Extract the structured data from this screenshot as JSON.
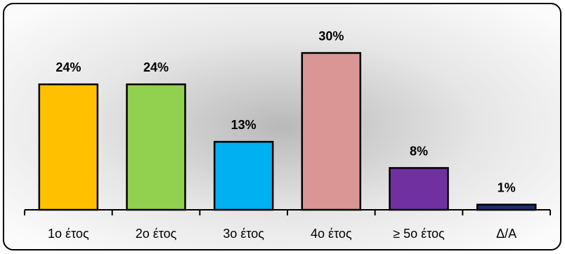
{
  "chart_data": {
    "type": "bar",
    "title": "",
    "xlabel": "",
    "ylabel": "",
    "categories": [
      "1ο έτος",
      "2ο έτος",
      "3ο έτος",
      "4ο έτος",
      "≥ 5ο έτος",
      "Δ/Α"
    ],
    "values": [
      24,
      24,
      13,
      30,
      8,
      1
    ],
    "value_labels": [
      "24%",
      "24%",
      "13%",
      "30%",
      "8%",
      "1%"
    ],
    "unit": "%",
    "ylim": [
      0,
      30
    ],
    "grid": false,
    "legend": "none",
    "colors": [
      "#FFC000",
      "#92D050",
      "#00B0F0",
      "#D99694",
      "#7030A0",
      "#1F2D6E"
    ]
  }
}
